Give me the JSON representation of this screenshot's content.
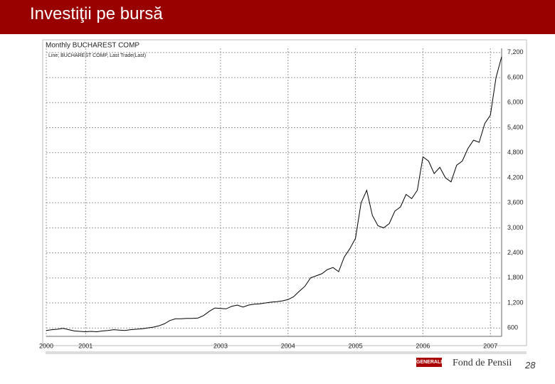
{
  "slide": {
    "title": "Investiţii pe bursă",
    "logo": "GENERALI",
    "brand": "Fond de Pensii",
    "page": "28"
  },
  "chart_data": {
    "type": "line",
    "title": "Monthly BUCHAREST COMP",
    "categories": [
      "2000",
      null,
      null,
      null,
      null,
      null,
      null,
      "2001",
      null,
      null,
      null,
      null,
      null,
      null,
      null,
      null,
      null,
      null,
      null,
      null,
      null,
      null,
      null,
      null,
      null,
      null,
      null,
      null,
      null,
      null,
      null,
      "2003",
      null,
      null,
      null,
      null,
      null,
      null,
      null,
      null,
      null,
      null,
      null,
      "2004",
      null,
      null,
      null,
      null,
      null,
      null,
      null,
      null,
      null,
      null,
      null,
      "2005",
      null,
      null,
      null,
      null,
      null,
      null,
      null,
      null,
      null,
      null,
      null,
      "2006",
      null,
      null,
      null,
      null,
      null,
      null,
      null,
      null,
      null,
      null,
      null,
      "2007",
      null,
      null
    ],
    "series": [
      {
        "name": "Line; BUCHAREST COMP, Last Trade(Last)",
        "color": "#000000",
        "values": [
          540,
          560,
          570,
          590,
          560,
          530,
          520,
          510,
          520,
          510,
          530,
          540,
          560,
          550,
          540,
          560,
          570,
          580,
          600,
          620,
          650,
          700,
          780,
          820,
          820,
          830,
          830,
          840,
          900,
          1000,
          1080,
          1070,
          1060,
          1120,
          1150,
          1100,
          1150,
          1170,
          1180,
          1200,
          1220,
          1230,
          1250,
          1280,
          1350,
          1480,
          1600,
          1800,
          1850,
          1900,
          2000,
          2050,
          1950,
          2300,
          2500,
          2750,
          3600,
          3900,
          3300,
          3050,
          3000,
          3100,
          3400,
          3500,
          3800,
          3700,
          3900,
          4700,
          4600,
          4300,
          4450,
          4200,
          4100,
          4500,
          4600,
          4900,
          5100,
          5050,
          5500,
          5700,
          6600,
          7100
        ]
      }
    ],
    "ylim": [
      400,
      7300
    ],
    "yticks": [
      600,
      {
        "value": 1200,
        "label": "1,200"
      },
      {
        "value": 1800,
        "label": "1,800"
      },
      {
        "value": 2400,
        "label": "2,400"
      },
      {
        "value": 3000,
        "label": "3,000"
      },
      {
        "value": 3600,
        "label": "3,600"
      },
      {
        "value": 4200,
        "label": "4,200"
      },
      {
        "value": 4800,
        "label": "4,800"
      },
      {
        "value": 5400,
        "label": "5,400"
      },
      {
        "value": 6000,
        "label": "6,000"
      },
      {
        "value": 6600,
        "label": "6,600"
      },
      {
        "value": 7200,
        "label": "7,200"
      }
    ],
    "grid": true
  }
}
